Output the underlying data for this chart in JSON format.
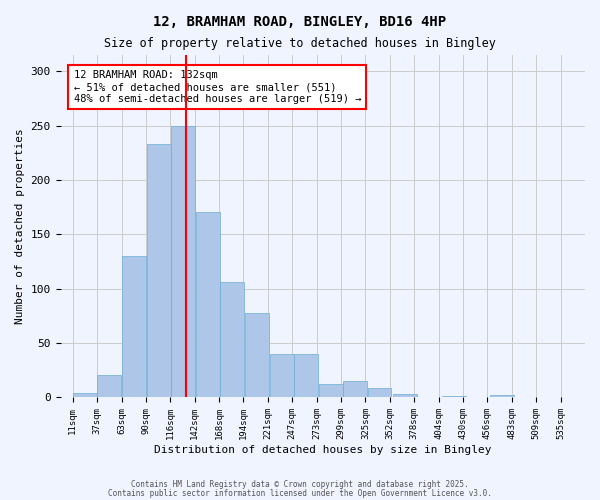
{
  "title1": "12, BRAMHAM ROAD, BINGLEY, BD16 4HP",
  "title2": "Size of property relative to detached houses in Bingley",
  "xlabel": "Distribution of detached houses by size in Bingley",
  "ylabel": "Number of detached properties",
  "bar_heights": [
    4,
    21,
    130,
    233,
    250,
    171,
    106,
    78,
    40,
    40,
    12,
    15,
    9,
    3,
    0,
    1,
    0,
    2
  ],
  "bin_left_edges": [
    11,
    37,
    63,
    90,
    116,
    142,
    168,
    194,
    221,
    247,
    273,
    299,
    325,
    352,
    378,
    404,
    430,
    456
  ],
  "bin_width": 26,
  "xtick_labels": [
    "11sqm",
    "37sqm",
    "63sqm",
    "90sqm",
    "116sqm",
    "142sqm",
    "168sqm",
    "194sqm",
    "221sqm",
    "247sqm",
    "273sqm",
    "299sqm",
    "325sqm",
    "352sqm",
    "378sqm",
    "404sqm",
    "430sqm",
    "456sqm",
    "483sqm",
    "509sqm",
    "535sqm"
  ],
  "bar_color": "#aec6e8",
  "bar_edge_color": "#6aaed6",
  "vline_x": 132,
  "vline_color": "red",
  "annotation_text": "12 BRAMHAM ROAD: 132sqm\n← 51% of detached houses are smaller (551)\n48% of semi-detached houses are larger (519) →",
  "annotation_box_color": "white",
  "annotation_box_edge_color": "red",
  "ylim": [
    0,
    315
  ],
  "yticks": [
    0,
    50,
    100,
    150,
    200,
    250,
    300
  ],
  "grid_color": "#cccccc",
  "bg_color": "#f0f4ff",
  "footer1": "Contains HM Land Registry data © Crown copyright and database right 2025.",
  "footer2": "Contains public sector information licensed under the Open Government Licence v3.0."
}
